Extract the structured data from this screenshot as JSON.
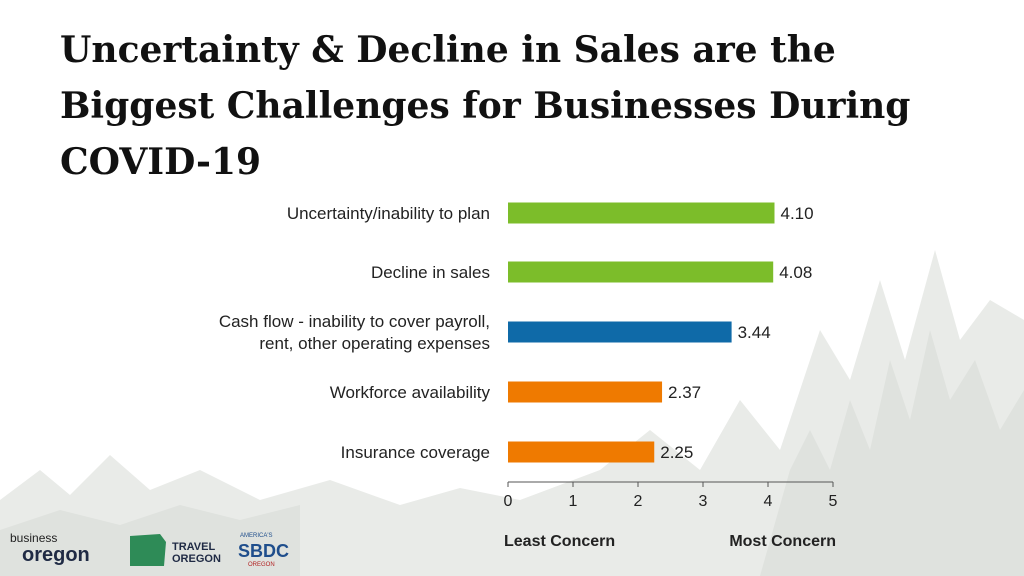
{
  "title": {
    "line1": "Uncertainty & Decline in Sales are the",
    "line2": "Biggest Challenges for Businesses During",
    "line3": "COVID-19"
  },
  "logos": {
    "business_top": "business",
    "business_bottom": "oregon",
    "travel_line1": "TRAVEL",
    "travel_line2": "OREGON",
    "sbdc_top": "AMERICA'S",
    "sbdc_main": "SBDC",
    "sbdc_bottom": "OREGON"
  },
  "chart_data": {
    "type": "bar",
    "orientation": "horizontal",
    "categories": [
      [
        "Uncertainty/inability to plan"
      ],
      [
        "Decline in sales"
      ],
      [
        "Cash flow - inability to cover payroll,",
        "rent, other operating expenses"
      ],
      [
        "Workforce availability"
      ],
      [
        "Insurance coverage"
      ]
    ],
    "values": [
      4.1,
      4.08,
      3.44,
      2.37,
      2.25
    ],
    "value_labels": [
      "4.10",
      "4.08",
      "3.44",
      "2.37",
      "2.25"
    ],
    "bar_colors": [
      "#7cbd2a",
      "#7cbd2a",
      "#0f6aa8",
      "#ef7a00",
      "#ef7a00"
    ],
    "xlim": [
      0,
      5
    ],
    "xticks": [
      "0",
      "1",
      "2",
      "3",
      "4",
      "5"
    ],
    "axis_annotations": {
      "left": "Least Concern",
      "right": "Most Concern"
    },
    "grid": false
  }
}
